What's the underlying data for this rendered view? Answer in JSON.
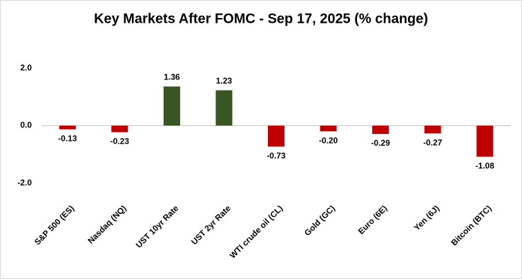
{
  "chart_data": {
    "type": "bar",
    "title": "Key Markets After FOMC - Sep 17, 2025 (% change)",
    "categories": [
      "S&P 500 (ES)",
      "Nasdaq (NQ)",
      "UST 10yr Rate",
      "UST 2yr Rate",
      "WTI crude oil (CL)",
      "Gold (GC)",
      "Euro (6E)",
      "Yen (6J)",
      "Bitcoin (BTC)"
    ],
    "values": [
      -0.13,
      -0.23,
      1.36,
      1.23,
      -0.73,
      -0.2,
      -0.29,
      -0.27,
      -1.08
    ],
    "value_labels": [
      "-0.13",
      "-0.23",
      "1.36",
      "1.23",
      "-0.73",
      "-0.20",
      "-0.29",
      "-0.27",
      "-1.08"
    ],
    "colors": [
      "#c00000",
      "#c00000",
      "#375623",
      "#375623",
      "#c00000",
      "#c00000",
      "#c00000",
      "#c00000",
      "#c00000"
    ],
    "ylim": [
      -2.5,
      3.0
    ],
    "yticks": [
      {
        "value": 2,
        "label": "2.0"
      },
      {
        "value": 0,
        "label": "0.0"
      },
      {
        "value": -2,
        "label": "-2.0"
      }
    ],
    "grid": false
  }
}
